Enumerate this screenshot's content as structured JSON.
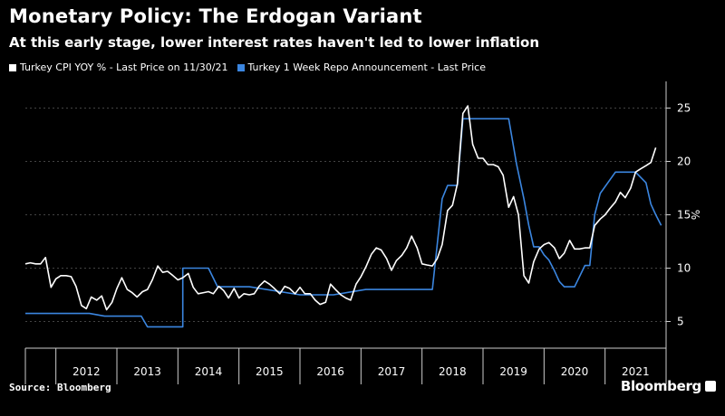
{
  "header": {
    "title": "Monetary Policy: The Erdogan Variant",
    "subtitle": "At this early stage, lower interest rates haven't led to lower inflation"
  },
  "footer": {
    "source": "Source: Bloomberg",
    "brand": "Bloomberg"
  },
  "chart_data": {
    "type": "line",
    "xlim": [
      2011.5,
      2022.0
    ],
    "ylim": [
      2.5,
      27.5
    ],
    "ylabel": "%",
    "y_ticks": [
      5,
      10,
      15,
      20,
      25
    ],
    "x_tick_labels": [
      "2012",
      "2013",
      "2014",
      "2015",
      "2016",
      "2017",
      "2018",
      "2019",
      "2020",
      "2021"
    ],
    "grid": true,
    "legend_placement": "top-left",
    "series": [
      {
        "name": "Turkey CPI YOY % - Last Price on 11/30/21",
        "color": "#ffffff",
        "x": [
          2011.5,
          2011.58,
          2011.67,
          2011.75,
          2011.83,
          2011.92,
          2012.0,
          2012.08,
          2012.17,
          2012.25,
          2012.33,
          2012.42,
          2012.5,
          2012.58,
          2012.67,
          2012.75,
          2012.83,
          2012.92,
          2013.0,
          2013.08,
          2013.17,
          2013.25,
          2013.33,
          2013.42,
          2013.5,
          2013.58,
          2013.67,
          2013.75,
          2013.83,
          2013.92,
          2014.0,
          2014.08,
          2014.17,
          2014.25,
          2014.33,
          2014.42,
          2014.5,
          2014.58,
          2014.67,
          2014.75,
          2014.83,
          2014.92,
          2015.0,
          2015.08,
          2015.17,
          2015.25,
          2015.33,
          2015.42,
          2015.5,
          2015.58,
          2015.67,
          2015.75,
          2015.83,
          2015.92,
          2016.0,
          2016.08,
          2016.17,
          2016.25,
          2016.33,
          2016.42,
          2016.5,
          2016.58,
          2016.67,
          2016.75,
          2016.83,
          2016.92,
          2017.0,
          2017.08,
          2017.17,
          2017.25,
          2017.33,
          2017.42,
          2017.5,
          2017.58,
          2017.67,
          2017.75,
          2017.83,
          2017.92,
          2018.0,
          2018.08,
          2018.17,
          2018.25,
          2018.33,
          2018.42,
          2018.5,
          2018.58,
          2018.67,
          2018.75,
          2018.83,
          2018.92,
          2019.0,
          2019.08,
          2019.17,
          2019.25,
          2019.33,
          2019.42,
          2019.5,
          2019.58,
          2019.67,
          2019.75,
          2019.83,
          2019.92,
          2020.0,
          2020.08,
          2020.17,
          2020.25,
          2020.33,
          2020.42,
          2020.5,
          2020.58,
          2020.67,
          2020.75,
          2020.83,
          2020.92,
          2021.0,
          2021.08,
          2021.17,
          2021.25,
          2021.33,
          2021.42,
          2021.5,
          2021.58,
          2021.67,
          2021.75,
          2021.83
        ],
        "values": [
          10.4,
          10.5,
          10.4,
          10.4,
          11.0,
          8.2,
          9.0,
          9.3,
          9.3,
          9.2,
          8.3,
          6.5,
          6.2,
          7.3,
          7.0,
          7.4,
          6.1,
          6.8,
          8.1,
          9.1,
          8.0,
          7.7,
          7.3,
          7.8,
          8.0,
          8.9,
          10.2,
          9.6,
          9.7,
          9.3,
          8.9,
          9.1,
          9.5,
          8.2,
          7.6,
          7.7,
          7.8,
          7.6,
          8.3,
          7.9,
          7.2,
          8.1,
          7.2,
          7.6,
          7.5,
          7.6,
          8.3,
          8.8,
          8.5,
          8.1,
          7.6,
          8.3,
          8.1,
          7.6,
          8.2,
          7.6,
          7.6,
          7.0,
          6.6,
          6.8,
          8.5,
          8.0,
          7.5,
          7.2,
          7.0,
          8.5,
          9.2,
          10.1,
          11.3,
          11.9,
          11.7,
          10.9,
          9.8,
          10.7,
          11.2,
          11.9,
          13.0,
          11.9,
          10.4,
          10.3,
          10.2,
          10.9,
          12.2,
          15.4,
          15.9,
          17.9,
          24.5,
          25.2,
          21.6,
          20.3,
          20.3,
          19.7,
          19.7,
          19.5,
          18.7,
          15.7,
          16.7,
          15.0,
          9.3,
          8.6,
          10.6,
          11.8,
          12.2,
          12.4,
          11.9,
          10.9,
          11.4,
          12.6,
          11.8,
          11.8,
          11.9,
          11.9,
          14.0,
          14.6,
          15.0,
          15.6,
          16.2,
          17.1,
          16.6,
          17.5,
          19.0,
          19.3,
          19.6,
          19.9,
          21.3
        ]
      },
      {
        "name": "Turkey 1 Week Repo Announcement - Last Price",
        "color": "#3b86e0",
        "x": [
          2011.5,
          2012.55,
          2012.8,
          2013.4,
          2013.5,
          2013.5,
          2013.95,
          2014.08,
          2014.08,
          2014.5,
          2014.65,
          2015.0,
          2015.17,
          2016.0,
          2016.55,
          2017.08,
          2018.0,
          2018.08,
          2018.17,
          2018.33,
          2018.42,
          2018.58,
          2018.67,
          2019.0,
          2019.42,
          2019.55,
          2019.67,
          2019.75,
          2019.83,
          2019.92,
          2020.0,
          2020.08,
          2020.17,
          2020.25,
          2020.33,
          2020.42,
          2020.5,
          2020.67,
          2020.75,
          2020.83,
          2020.92,
          2021.17,
          2021.25,
          2021.5,
          2021.67,
          2021.75,
          2021.83,
          2021.92
        ],
        "values": [
          5.75,
          5.75,
          5.5,
          5.5,
          4.5,
          4.5,
          4.5,
          4.5,
          10.0,
          10.0,
          8.25,
          8.25,
          8.25,
          7.5,
          7.5,
          8.0,
          8.0,
          8.0,
          8.0,
          16.5,
          17.75,
          17.75,
          24.0,
          24.0,
          24.0,
          19.75,
          16.5,
          14.0,
          12.0,
          12.0,
          11.25,
          10.75,
          9.75,
          8.75,
          8.25,
          8.25,
          8.25,
          10.25,
          10.25,
          15.0,
          17.0,
          19.0,
          19.0,
          19.0,
          18.0,
          16.0,
          15.0,
          14.0
        ]
      }
    ]
  }
}
